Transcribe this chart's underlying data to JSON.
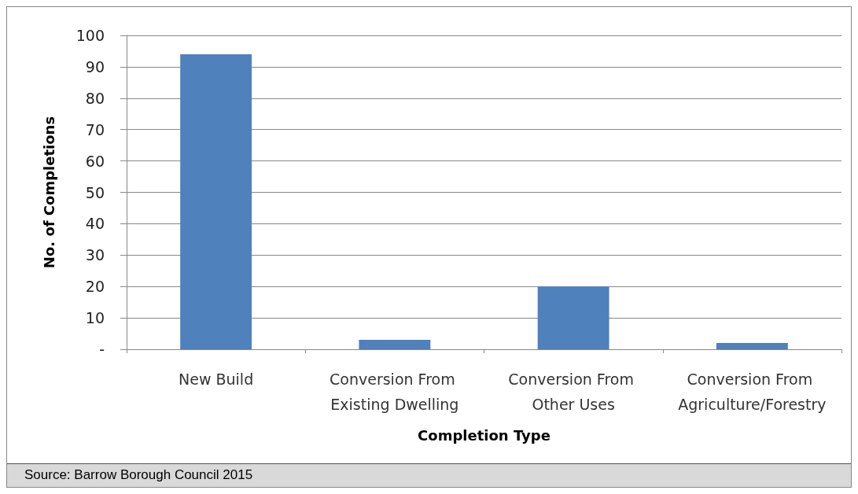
{
  "chart_data": {
    "type": "bar",
    "xlabel": "Completion Type",
    "ylabel": "No. of Completions",
    "categories": [
      "New Build",
      "Conversion From Existing Dwelling",
      "Conversion From Other Uses",
      "Conversion From Agriculture/Forestry"
    ],
    "values": [
      94,
      3,
      20,
      2
    ],
    "color": "#4f81bd",
    "ylim": [
      0,
      100
    ],
    "yticks": [
      {
        "value": 0,
        "label": "-"
      },
      10,
      20,
      30,
      40,
      50,
      60,
      70,
      80,
      90,
      100
    ],
    "grid": "y",
    "annotations": [
      "Source: Barrow Borough Council 2015"
    ]
  }
}
